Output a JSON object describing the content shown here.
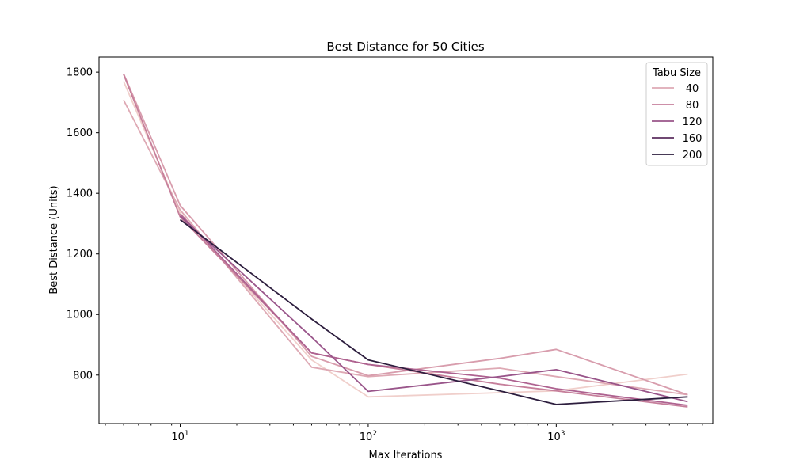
{
  "chart_data": {
    "type": "line",
    "title": "Best Distance for 50 Cities",
    "xlabel": "Max Iterations",
    "ylabel": "Best Distance (Units)",
    "xscale": "log",
    "xlim": [
      3.7,
      6800
    ],
    "ylim": [
      640,
      1850
    ],
    "yticks": [
      800,
      1000,
      1200,
      1400,
      1600,
      1800
    ],
    "xticks": [
      {
        "value": 10,
        "base": "10",
        "exp": "1"
      },
      {
        "value": 100,
        "base": "10",
        "exp": "2"
      },
      {
        "value": 1000,
        "base": "10",
        "exp": "3"
      }
    ],
    "grid": false,
    "legend": {
      "title": "Tabu Size",
      "placement": "top-right"
    },
    "series": [
      {
        "name": "",
        "color": "#f0cfcb",
        "x": [
          5,
          10,
          50,
          100,
          500,
          1000,
          5000
        ],
        "y": [
          1770,
          1335,
          850,
          728,
          742,
          748,
          803
        ]
      },
      {
        "name": "40",
        "color": "#dea9b4",
        "x": [
          5,
          10,
          50,
          100,
          500,
          1000,
          5000
        ],
        "y": [
          1708,
          1345,
          826,
          795,
          823,
          795,
          735
        ]
      },
      {
        "name": "",
        "color": "#d89dad",
        "x": [
          5,
          10,
          50,
          100,
          500,
          1000,
          5000
        ],
        "y": [
          1795,
          1360,
          862,
          798,
          855,
          885,
          735
        ]
      },
      {
        "name": "80",
        "color": "#c67f9b",
        "x": [
          5,
          10,
          50,
          100,
          500,
          1000,
          5000
        ],
        "y": [
          1793,
          1322,
          873,
          835,
          770,
          748,
          695
        ]
      },
      {
        "name": "",
        "color": "#ae6290",
        "x": [
          5,
          10,
          50,
          100,
          500,
          1000,
          5000
        ],
        "y": [
          null,
          1332,
          873,
          835,
          790,
          755,
          700
        ]
      },
      {
        "name": "120",
        "color": "#99558a",
        "x": [
          5,
          10,
          50,
          100,
          500,
          1000,
          5000
        ],
        "y": [
          null,
          1325,
          925,
          746,
          795,
          818,
          712
        ]
      },
      {
        "name": "160",
        "color": "#5c2e5f",
        "x": [
          5,
          10,
          50,
          100,
          500,
          1000,
          5000
        ],
        "y": [
          null,
          null,
          null,
          null,
          null,
          null,
          null
        ]
      },
      {
        "name": "200",
        "color": "#2d1e3e",
        "x": [
          5,
          10,
          50,
          100,
          500,
          1000,
          5000
        ],
        "y": [
          null,
          1313,
          985,
          850,
          748,
          703,
          728
        ]
      }
    ],
    "legend_entries": [
      {
        "label": "40",
        "color": "#dea9b4"
      },
      {
        "label": "80",
        "color": "#c67f9b"
      },
      {
        "label": "120",
        "color": "#99558a"
      },
      {
        "label": "160",
        "color": "#5c2e5f"
      },
      {
        "label": "200",
        "color": "#2d1e3e"
      }
    ]
  }
}
